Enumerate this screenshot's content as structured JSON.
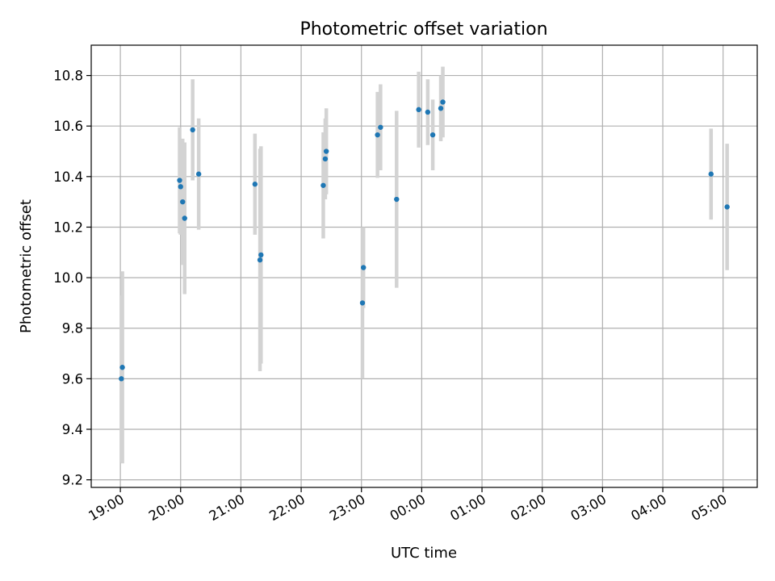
{
  "chart_data": {
    "type": "scatter",
    "title": "Photometric offset variation",
    "xlabel": "UTC time",
    "ylabel": "Photometric offset",
    "x_axis": "time",
    "x_tick_labels": [
      "19:00",
      "20:00",
      "21:00",
      "22:00",
      "23:00",
      "00:00",
      "01:00",
      "02:00",
      "03:00",
      "04:00",
      "05:00"
    ],
    "y_ticks": [
      9.2,
      9.4,
      9.6,
      9.8,
      10.0,
      10.2,
      10.4,
      10.6,
      10.8
    ],
    "y_tick_labels": [
      "9.2",
      "9.4",
      "9.6",
      "9.8",
      "10.0",
      "10.2",
      "10.4",
      "10.6",
      "10.8"
    ],
    "xlim": [
      "18:31",
      "05:34"
    ],
    "ylim": [
      9.17,
      10.92
    ],
    "grid": true,
    "marker_color": "#1f77b4",
    "errorbar_color": "#d3d3d3",
    "points": [
      {
        "x": "19:01",
        "y": 9.6,
        "err": 0.33
      },
      {
        "x": "19:02",
        "y": 9.645,
        "err": 0.38
      },
      {
        "x": "19:59",
        "y": 10.385,
        "err": 0.21
      },
      {
        "x": "20:00",
        "y": 10.36,
        "err": 0.19
      },
      {
        "x": "20:02",
        "y": 10.3,
        "err": 0.25
      },
      {
        "x": "20:04",
        "y": 10.235,
        "err": 0.3
      },
      {
        "x": "20:12",
        "y": 10.585,
        "err": 0.2
      },
      {
        "x": "20:18",
        "y": 10.41,
        "err": 0.22
      },
      {
        "x": "21:14",
        "y": 10.37,
        "err": 0.2
      },
      {
        "x": "21:19",
        "y": 10.07,
        "err": 0.44
      },
      {
        "x": "21:20",
        "y": 10.09,
        "err": 0.43
      },
      {
        "x": "22:22",
        "y": 10.365,
        "err": 0.21
      },
      {
        "x": "22:24",
        "y": 10.47,
        "err": 0.16
      },
      {
        "x": "22:25",
        "y": 10.5,
        "err": 0.17
      },
      {
        "x": "23:01",
        "y": 9.9,
        "err": 0.3
      },
      {
        "x": "23:02",
        "y": 10.04,
        "err": 0.16
      },
      {
        "x": "23:16",
        "y": 10.565,
        "err": 0.17
      },
      {
        "x": "23:19",
        "y": 10.595,
        "err": 0.17
      },
      {
        "x": "23:35",
        "y": 10.31,
        "err": 0.35
      },
      {
        "x": "23:57",
        "y": 10.665,
        "err": 0.15
      },
      {
        "x": "00:06",
        "y": 10.655,
        "err": 0.13
      },
      {
        "x": "00:11",
        "y": 10.565,
        "err": 0.14
      },
      {
        "x": "00:19",
        "y": 10.67,
        "err": 0.13
      },
      {
        "x": "00:21",
        "y": 10.695,
        "err": 0.14
      },
      {
        "x": "04:48",
        "y": 10.41,
        "err": 0.18
      },
      {
        "x": "05:04",
        "y": 10.28,
        "err": 0.25
      }
    ]
  }
}
